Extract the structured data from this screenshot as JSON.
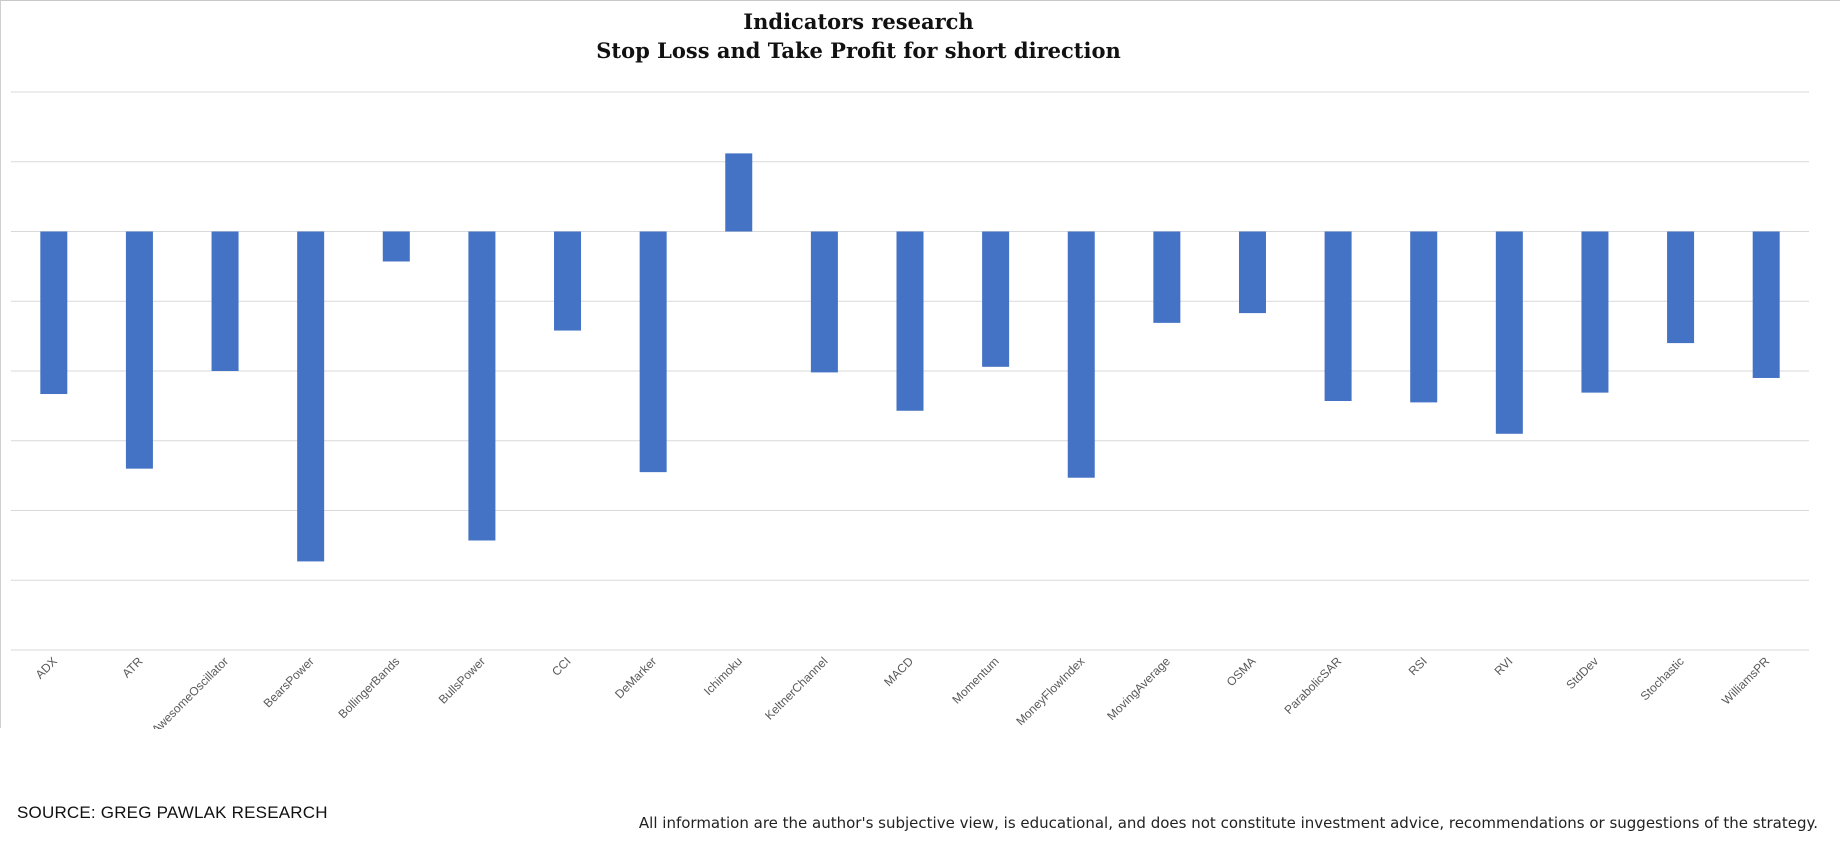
{
  "title_line1": "Indicators research",
  "title_line2": "Stop Loss and Take Profit for short direction",
  "source": "SOURCE: GREG PAWLAK RESEARCH",
  "disclaimer": "All information are the author's subjective view, is educational, and does not constitute investment advice, recommendations or suggestions of the strategy.",
  "colors": {
    "bar": "#4472C4",
    "gridline": "#d9d9d9",
    "tick_label": "#595959"
  },
  "chart_data": {
    "type": "bar",
    "title": "Indicators research",
    "subtitle": "Stop Loss and Take Profit for short direction",
    "categories": [
      "ADX",
      "ATR",
      "AwesomeOscillator",
      "BearsPower",
      "BollingerBands",
      "BullsPower",
      "CCI",
      "DeMarker",
      "Ichimoku",
      "KeltnerChannel",
      "MACD",
      "Momentum",
      "MoneyFlowIndex",
      "MovingAverage",
      "OSMA",
      "ParabolicSAR",
      "RSI",
      "RVI",
      "StdDev",
      "Stochastic",
      "WilliamsPR"
    ],
    "values": [
      -2.33,
      -3.4,
      -2.0,
      -4.73,
      -0.43,
      -4.43,
      -1.42,
      -3.45,
      1.12,
      -2.02,
      -2.57,
      -1.94,
      -3.53,
      -1.31,
      -1.17,
      -2.43,
      -2.45,
      -2.9,
      -2.31,
      -1.6,
      -2.1
    ],
    "ylim": [
      -6,
      2
    ],
    "gridline_step": 1,
    "y_axis_labels_visible": false,
    "legend": "none",
    "xlabel": "",
    "ylabel": ""
  }
}
